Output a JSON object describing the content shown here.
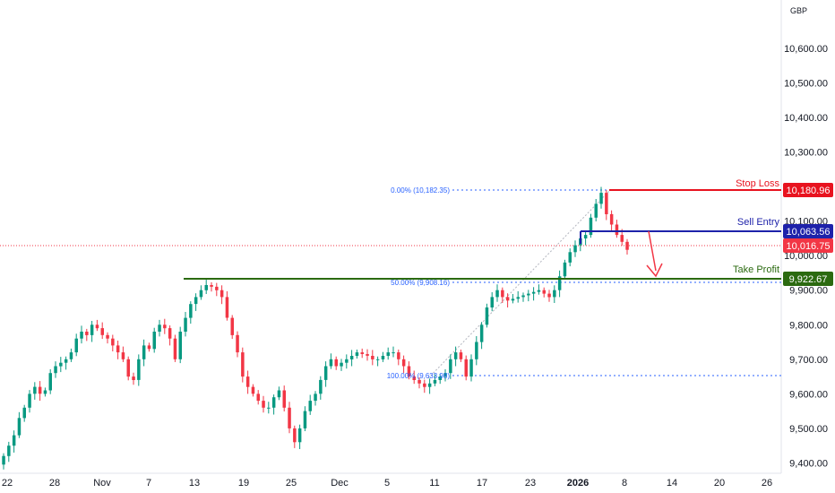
{
  "currency": "GBP",
  "colors": {
    "up": "#089981",
    "down": "#f23645",
    "stop": "#e8131f",
    "entry": "#1e22aa",
    "profit": "#2b6a10",
    "fib": "#2962ff",
    "last": "#f23645"
  },
  "chart_data": {
    "type": "candlestick",
    "ylim": [
      9370,
      10740
    ],
    "y_ticks": [
      "9,400.00",
      "9,500.00",
      "9,600.00",
      "9,700.00",
      "9,800.00",
      "9,900.00",
      "10,000.00",
      "10,100.00",
      "10,200.00",
      "10,300.00",
      "10,400.00",
      "10,500.00",
      "10,600.00"
    ],
    "x_ticks": [
      "22",
      "28",
      "Nov",
      "7",
      "13",
      "19",
      "25",
      "Dec",
      "5",
      "11",
      "17",
      "23",
      "2026",
      "8",
      "14",
      "20",
      "26"
    ],
    "close": [
      9420,
      9450,
      9480,
      9530,
      9560,
      9600,
      9620,
      9600,
      9610,
      9660,
      9680,
      9690,
      9700,
      9720,
      9760,
      9780,
      9770,
      9800,
      9790,
      9770,
      9760,
      9740,
      9720,
      9700,
      9650,
      9640,
      9700,
      9740,
      9730,
      9780,
      9800,
      9790,
      9760,
      9700,
      9780,
      9820,
      9860,
      9880,
      9900,
      9915,
      9910,
      9900,
      9880,
      9820,
      9770,
      9720,
      9650,
      9620,
      9600,
      9580,
      9560,
      9560,
      9590,
      9610,
      9560,
      9500,
      9460,
      9500,
      9550,
      9580,
      9600,
      9640,
      9680,
      9700,
      9680,
      9690,
      9700,
      9710,
      9720,
      9715,
      9710,
      9700,
      9700,
      9710,
      9720,
      9720,
      9700,
      9680,
      9650,
      9640,
      9630,
      9620,
      9630,
      9640,
      9650,
      9660,
      9700,
      9720,
      9700,
      9650,
      9700,
      9750,
      9800,
      9850,
      9880,
      9900,
      9880,
      9870,
      9875,
      9880,
      9885,
      9890,
      9895,
      9900,
      9890,
      9880,
      9900,
      9940,
      9980,
      10010,
      10030,
      10050,
      10060,
      10110,
      10150,
      10182,
      10120,
      10090,
      10060,
      10040,
      10017
    ],
    "stop_loss": {
      "label": "Stop Loss",
      "price": "10,180.96"
    },
    "sell_entry": {
      "label": "Sell Entry",
      "price": "10,063.56"
    },
    "take_profit": {
      "label": "Take Profit",
      "price": "9,922.67"
    },
    "last_price": {
      "price": "10,016.75"
    },
    "fib_levels": [
      {
        "label": "0.00% (10,182.35)"
      },
      {
        "label": "50.00% (9,908.16)"
      },
      {
        "label": "100.00% (9,633.98)"
      }
    ]
  }
}
